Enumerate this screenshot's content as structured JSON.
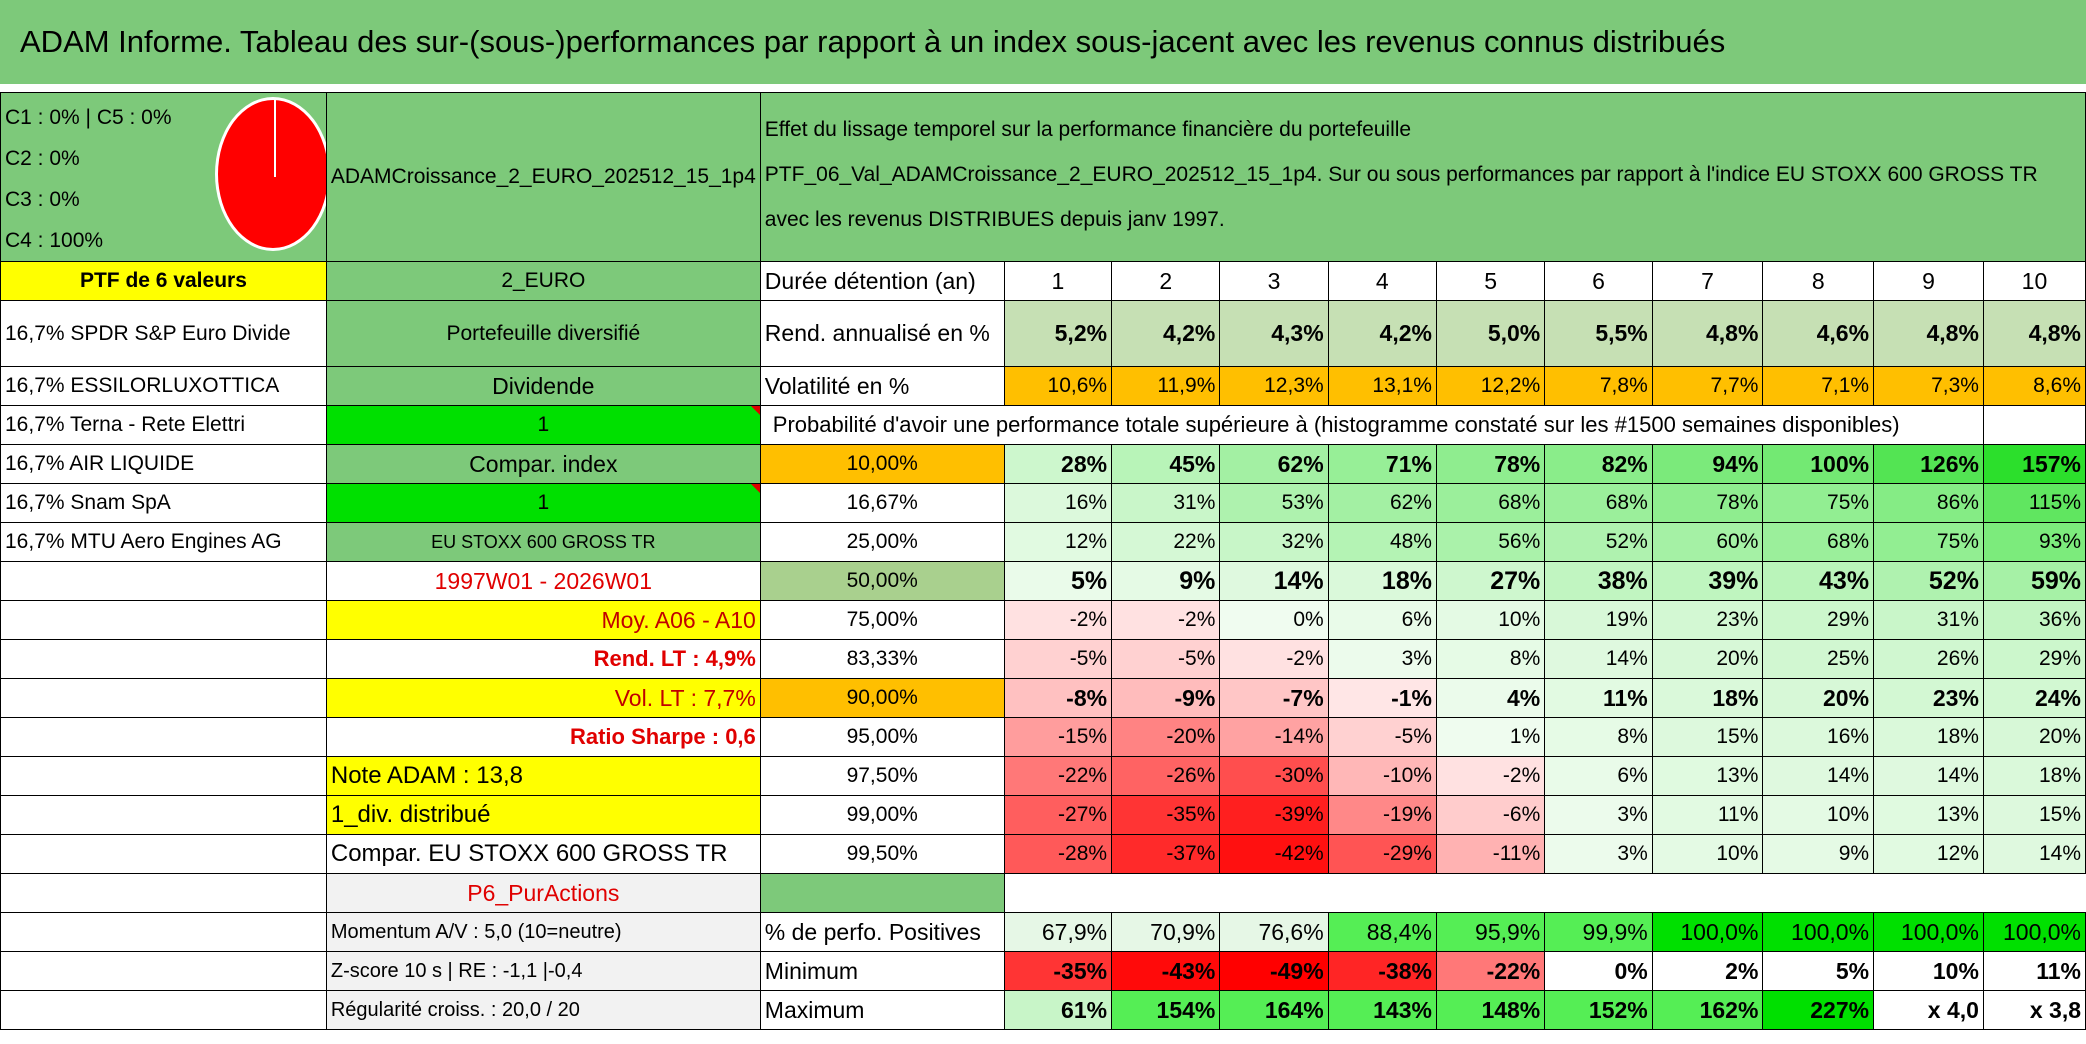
{
  "title": "ADAM Informe. Tableau des sur-(sous-)performances par rapport à un index sous-jacent avec les revenus connus distribués",
  "legend": [
    "C1 : 0% | C5 : 0%",
    "C2 : 0%",
    "C3 : 0%",
    "C4 : 100%"
  ],
  "portfolio_name": "ADAMCroissance_2_EURO_202512_15_1p4",
  "description": {
    "line1": "Effet du lissage temporel sur la performance financière du portefeuille",
    "line2": "PTF_06_Val_ADAMCroissance_2_EURO_202512_15_1p4. Sur ou sous performances par rapport à l'indice EU STOXX 600 GROSS TR avec les revenus DISTRIBUES depuis janv 1997."
  },
  "ptf_label": "PTF de 6 valeurs",
  "currency": "2_EURO",
  "holdings": [
    "16,7% SPDR S&P Euro Divide",
    "16,7% ESSILORLUXOTTICA",
    "16,7% Terna - Rete Elettri",
    "16,7% AIR LIQUIDE",
    "16,7% Snam SpA",
    "16,7% MTU Aero Engines AG"
  ],
  "mid_labels": {
    "portefeuille": "Portefeuille diversifié",
    "dividende": "Dividende",
    "one_a": "1",
    "compar": "Compar. index",
    "one_b": "1",
    "index": "EU STOXX 600 GROSS TR",
    "period": "1997W01 - 2026W01",
    "moy": "Moy. A06 - A10",
    "rend_lt": "Rend. LT : 4,9%",
    "vol_lt": "Vol. LT : 7,7%",
    "sharpe": "Ratio Sharpe : 0,6",
    "note": "Note ADAM : 13,8",
    "div": "1_div. distribué",
    "compar_full": "Compar. EU STOXX 600 GROSS TR",
    "purac": "P6_PurActions",
    "momentum": "Momentum A/V : 5,0 (10=neutre)",
    "zscore": "Z-score 10 s | RE : -1,1 |-0,4",
    "regul": "Régularité croiss. : 20,0 / 20"
  },
  "row_labels": {
    "duree": "Durée détention (an)",
    "rend": "Rend. annualisé en %",
    "vol": "Volatilité en %",
    "proba": "Probabilité d'avoir une performance totale supérieure à (histogramme constaté sur les #1500 semaines disponibles)",
    "pos": "% de perfo. Positives",
    "min": "Minimum",
    "max": "Maximum"
  },
  "years": [
    "1",
    "2",
    "3",
    "4",
    "5",
    "6",
    "7",
    "8",
    "9",
    "10"
  ],
  "rend": [
    "5,2%",
    "4,2%",
    "4,3%",
    "4,2%",
    "5,0%",
    "5,5%",
    "4,8%",
    "4,6%",
    "4,8%",
    "4,8%"
  ],
  "vol": [
    "10,6%",
    "11,9%",
    "12,3%",
    "13,1%",
    "12,2%",
    "7,8%",
    "7,7%",
    "7,1%",
    "7,3%",
    "8,6%"
  ],
  "prob_rows": [
    {
      "threshold": "10,00%",
      "values": [
        "28%",
        "45%",
        "62%",
        "71%",
        "78%",
        "82%",
        "94%",
        "100%",
        "126%",
        "157%"
      ]
    },
    {
      "threshold": "16,67%",
      "values": [
        "16%",
        "31%",
        "53%",
        "62%",
        "68%",
        "68%",
        "78%",
        "75%",
        "86%",
        "115%"
      ]
    },
    {
      "threshold": "25,00%",
      "values": [
        "12%",
        "22%",
        "32%",
        "48%",
        "56%",
        "52%",
        "60%",
        "68%",
        "75%",
        "93%"
      ]
    },
    {
      "threshold": "50,00%",
      "values": [
        "5%",
        "9%",
        "14%",
        "18%",
        "27%",
        "38%",
        "39%",
        "43%",
        "52%",
        "59%"
      ]
    },
    {
      "threshold": "75,00%",
      "values": [
        "-2%",
        "-2%",
        "0%",
        "6%",
        "10%",
        "19%",
        "23%",
        "29%",
        "31%",
        "36%"
      ]
    },
    {
      "threshold": "83,33%",
      "values": [
        "-5%",
        "-5%",
        "-2%",
        "3%",
        "8%",
        "14%",
        "20%",
        "25%",
        "26%",
        "29%"
      ]
    },
    {
      "threshold": "90,00%",
      "values": [
        "-8%",
        "-9%",
        "-7%",
        "-1%",
        "4%",
        "11%",
        "18%",
        "20%",
        "23%",
        "24%"
      ]
    },
    {
      "threshold": "95,00%",
      "values": [
        "-15%",
        "-20%",
        "-14%",
        "-5%",
        "1%",
        "8%",
        "15%",
        "16%",
        "18%",
        "20%"
      ]
    },
    {
      "threshold": "97,50%",
      "values": [
        "-22%",
        "-26%",
        "-30%",
        "-10%",
        "-2%",
        "6%",
        "13%",
        "14%",
        "14%",
        "18%"
      ]
    },
    {
      "threshold": "99,00%",
      "values": [
        "-27%",
        "-35%",
        "-39%",
        "-19%",
        "-6%",
        "3%",
        "11%",
        "10%",
        "13%",
        "15%"
      ]
    },
    {
      "threshold": "99,50%",
      "values": [
        "-28%",
        "-37%",
        "-42%",
        "-29%",
        "-11%",
        "3%",
        "10%",
        "9%",
        "12%",
        "14%"
      ]
    }
  ],
  "positives": [
    "67,9%",
    "70,9%",
    "76,6%",
    "88,4%",
    "95,9%",
    "99,9%",
    "100,0%",
    "100,0%",
    "100,0%",
    "100,0%"
  ],
  "minimum": [
    "-35%",
    "-43%",
    "-49%",
    "-38%",
    "-22%",
    "0%",
    "2%",
    "5%",
    "10%",
    "11%"
  ],
  "maximum": [
    "61%",
    "154%",
    "164%",
    "143%",
    "148%",
    "152%",
    "162%",
    "227%",
    "x 4,0",
    "x 3,8"
  ],
  "colors": {
    "title_bg": "#7dc97a",
    "yellow": "#ffff00",
    "bright_green": "#00e000",
    "orange": "#ffbf00",
    "negative_red": "#ff0000",
    "positive_green": "#00dd00"
  }
}
